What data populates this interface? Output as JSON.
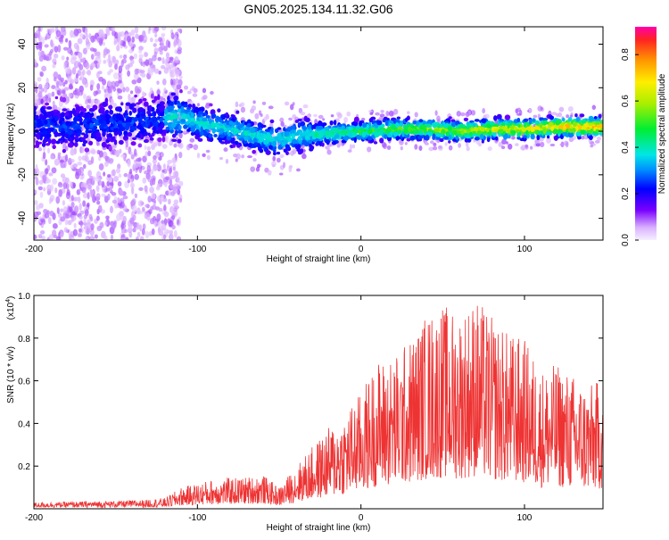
{
  "title": "GN05.2025.134.11.32.G06",
  "chart_data": [
    {
      "type": "heatmap",
      "xlabel": "Height of straight line (km)",
      "ylabel": "Frequency (Hz)",
      "xlim": [
        -200,
        148
      ],
      "ylim": [
        -50,
        48
      ],
      "xticks": [
        -200,
        -100,
        0,
        100
      ],
      "yticks": [
        -40,
        -20,
        0,
        20,
        40
      ],
      "grid": false,
      "colorbar": {
        "label": "Normalized spectral amplitude",
        "ticks": [
          0.0,
          0.2,
          0.4,
          0.6,
          0.8
        ],
        "range": [
          0,
          0.92
        ]
      },
      "ridge_frequency_hz": [
        [
          -200,
          3
        ],
        [
          -180,
          2
        ],
        [
          -160,
          3
        ],
        [
          -140,
          4
        ],
        [
          -120,
          6
        ],
        [
          -110,
          7
        ],
        [
          -100,
          4
        ],
        [
          -80,
          1
        ],
        [
          -60,
          -3
        ],
        [
          -50,
          -4
        ],
        [
          -40,
          -2
        ],
        [
          -20,
          -1
        ],
        [
          0,
          0
        ],
        [
          20,
          1
        ],
        [
          40,
          1
        ],
        [
          60,
          0
        ],
        [
          80,
          1
        ],
        [
          100,
          1
        ],
        [
          120,
          2
        ],
        [
          148,
          2
        ]
      ]
    },
    {
      "type": "line",
      "xlabel": "Height of straight line (km)",
      "ylabel": "SNR (10 * v/v)",
      "ylabel_multiplier": "(x10",
      "ylabel_exponent": "4",
      "ylabel_close": ")",
      "xlim": [
        -200,
        148
      ],
      "ylim": [
        0,
        1.0
      ],
      "xticks": [
        -200,
        -100,
        0,
        100
      ],
      "yticks": [
        0.2,
        0.4,
        0.6,
        0.8,
        1.0
      ],
      "series": [
        {
          "color": "#ee3333",
          "envelope_x": [
            -200,
            -150,
            -120,
            -110,
            -90,
            -70,
            -60,
            -50,
            -40,
            -30,
            -20,
            -10,
            0,
            10,
            20,
            30,
            40,
            50,
            60,
            70,
            80,
            90,
            100,
            110,
            120,
            130,
            140,
            148
          ],
          "envelope_ymax": [
            0.03,
            0.04,
            0.05,
            0.1,
            0.14,
            0.15,
            0.16,
            0.1,
            0.2,
            0.29,
            0.38,
            0.45,
            0.55,
            0.7,
            0.72,
            0.8,
            0.92,
            0.96,
            0.93,
            1.0,
            0.9,
            0.83,
            0.8,
            0.66,
            0.68,
            0.63,
            0.58,
            0.62
          ]
        }
      ]
    }
  ],
  "axes_text": {
    "top_xticks": [
      "-200",
      "-100",
      "0",
      "100"
    ],
    "top_yticks": [
      "-40",
      "-20",
      "0",
      "20",
      "40"
    ],
    "cbar_ticks": [
      "0.0",
      "0.2",
      "0.4",
      "0.6",
      "0.8"
    ],
    "bot_xticks": [
      "-200",
      "-100",
      "0",
      "100"
    ],
    "bot_yticks": [
      "0.2",
      "0.4",
      "0.6",
      "0.8",
      "1.0"
    ]
  }
}
